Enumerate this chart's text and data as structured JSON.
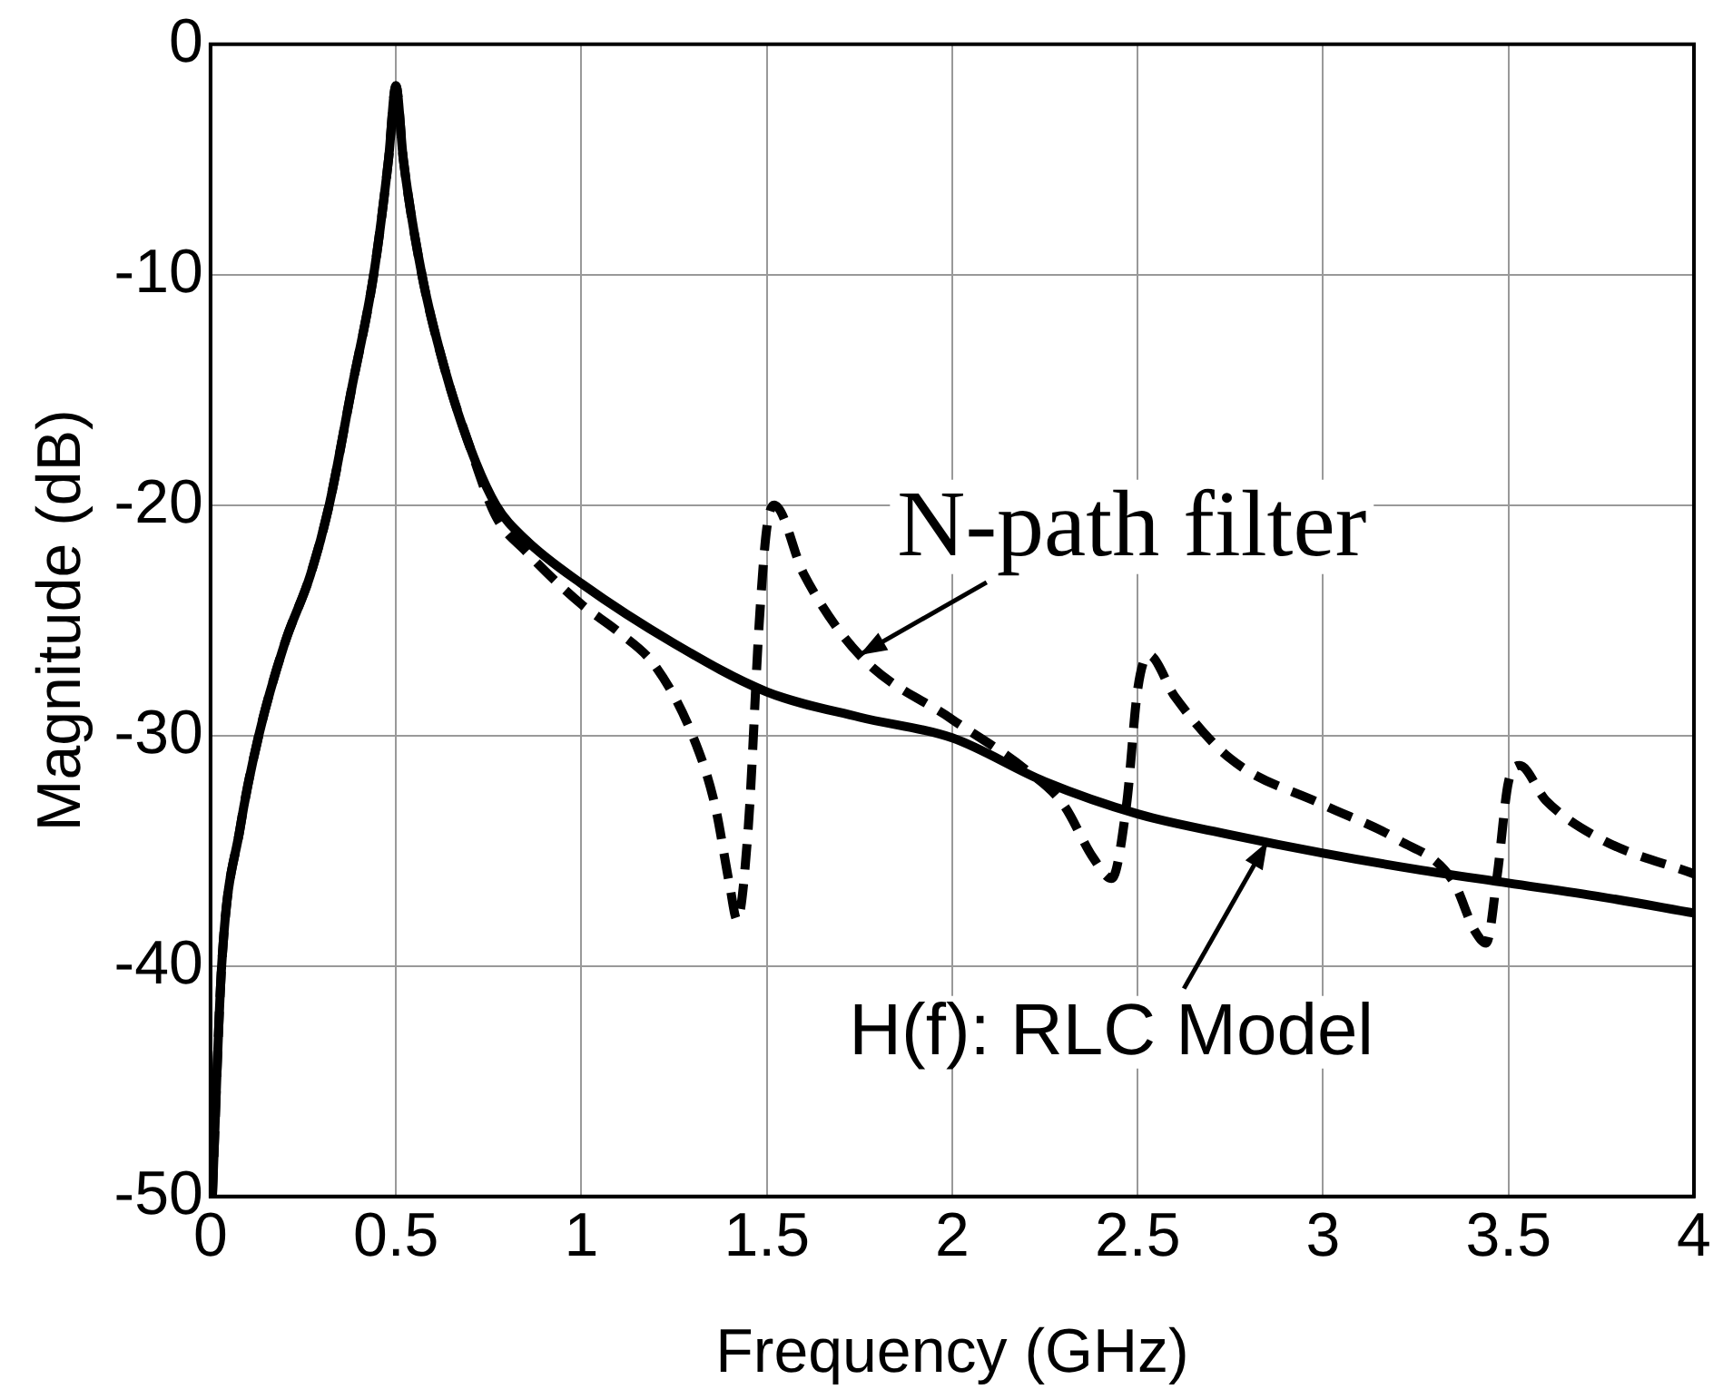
{
  "chart_data": {
    "type": "line",
    "xlabel": "Frequency (GHz)",
    "ylabel": "Magnitude (dB)",
    "xlim": [
      0,
      4
    ],
    "xticks": [
      0,
      0.5,
      1,
      1.5,
      2,
      2.5,
      3,
      3.5,
      4
    ],
    "ylim": [
      -50,
      0
    ],
    "yticks": [
      -50,
      -40,
      -30,
      -20,
      -10,
      0
    ],
    "grid": true,
    "legend": false,
    "marker": "none",
    "series": [
      {
        "name": null,
        "color": "#000000",
        "line_style": "solid",
        "x": [
          0.005,
          0.03,
          0.08,
          0.13,
          0.2,
          0.27,
          0.32,
          0.38,
          0.44,
          0.48,
          0.5,
          0.52,
          0.57,
          0.63,
          0.7,
          0.77,
          0.85,
          1,
          1.25,
          1.5,
          1.75,
          2,
          2.25,
          2.5,
          2.75,
          3,
          3.25,
          3.5,
          3.75,
          4
        ],
        "values": [
          -50,
          -40,
          -34,
          -30,
          -26,
          -23,
          -20,
          -15,
          -10,
          -5,
          -1.8,
          -5,
          -10,
          -14,
          -17.5,
          -20,
          -21.5,
          -23.4,
          -26,
          -28.1,
          -29.2,
          -30.1,
          -32,
          -33.4,
          -34.3,
          -35.1,
          -35.8,
          -36.4,
          -37,
          -37.7
        ]
      },
      {
        "name": null,
        "color": "#000000",
        "line_style": "dashed",
        "x": [
          0.005,
          0.03,
          0.08,
          0.13,
          0.2,
          0.27,
          0.32,
          0.38,
          0.44,
          0.48,
          0.5,
          0.52,
          0.57,
          0.63,
          0.7,
          0.77,
          0.85,
          1,
          1.1,
          1.2,
          1.3,
          1.36,
          1.4,
          1.42,
          1.45,
          1.48,
          1.5,
          1.52,
          1.6,
          1.75,
          2,
          2.2,
          2.3,
          2.38,
          2.43,
          2.47,
          2.5,
          2.53,
          2.6,
          2.75,
          3,
          3.2,
          3.35,
          3.41,
          3.44,
          3.47,
          3.5,
          3.53,
          3.6,
          3.75,
          4
        ],
        "values": [
          -50,
          -40,
          -34,
          -30,
          -26,
          -23,
          -20,
          -15,
          -10,
          -5,
          -1.8,
          -5,
          -10,
          -14,
          -17.5,
          -20.5,
          -22,
          -24.3,
          -25.5,
          -27,
          -30,
          -33,
          -36.5,
          -38,
          -34,
          -25,
          -21,
          -20,
          -23,
          -26.5,
          -29.3,
          -31.5,
          -33,
          -35.3,
          -36.2,
          -33,
          -28,
          -26.5,
          -28.3,
          -31,
          -33,
          -34.5,
          -36.3,
          -38.5,
          -39,
          -36,
          -32,
          -31.3,
          -32.8,
          -34.5,
          -36
        ]
      }
    ],
    "annotations": [
      {
        "text": "N-path filter",
        "x": 1.75,
        "y": -26.5
      },
      {
        "text": "H(f): RLC Model",
        "x": 2.85,
        "y": -34.6
      }
    ]
  }
}
